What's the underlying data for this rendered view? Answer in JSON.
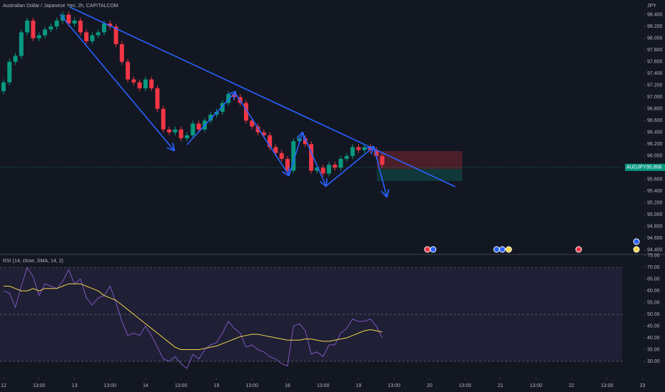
{
  "chart_data": [
    {
      "type": "candlestick",
      "title": "Australian Dollar / Japanese Yen, 2h, CAPITALCOM",
      "currency": "JPY",
      "up_color": "#089981",
      "down_color": "#f23645",
      "open": [
        97.1,
        97.25,
        97.6,
        97.7,
        98.1,
        98.3,
        98.0,
        98.05,
        98.15,
        98.2,
        98.3,
        98.4,
        98.25,
        98.3,
        98.1,
        97.95,
        98.05,
        98.1,
        98.25,
        98.2,
        97.9,
        97.6,
        97.3,
        97.25,
        97.15,
        97.3,
        97.15,
        96.8,
        96.45,
        96.4,
        96.45,
        96.3,
        96.35,
        96.55,
        96.45,
        96.6,
        96.7,
        96.75,
        96.9,
        97.05,
        97.0,
        96.9,
        96.6,
        96.5,
        96.4,
        96.35,
        96.15,
        96.05,
        95.95,
        95.75,
        96.25,
        96.3,
        96.2,
        95.75,
        95.8,
        95.7,
        95.85,
        95.8,
        95.95,
        96.0,
        96.15,
        96.1,
        96.15,
        96.1,
        96.0
      ],
      "high": [
        97.3,
        97.65,
        97.75,
        98.15,
        98.35,
        98.35,
        98.1,
        98.2,
        98.25,
        98.35,
        98.45,
        98.45,
        98.35,
        98.35,
        98.15,
        98.1,
        98.15,
        98.3,
        98.3,
        98.25,
        97.95,
        97.65,
        97.35,
        97.3,
        97.35,
        97.35,
        97.2,
        96.85,
        96.5,
        96.5,
        96.5,
        96.4,
        96.6,
        96.6,
        96.65,
        96.75,
        96.8,
        96.95,
        97.1,
        97.1,
        97.05,
        96.95,
        96.65,
        96.55,
        96.45,
        96.4,
        96.2,
        96.1,
        96.0,
        96.3,
        96.35,
        96.35,
        96.25,
        95.85,
        95.85,
        95.9,
        95.9,
        96.0,
        96.05,
        96.2,
        96.2,
        96.2,
        96.2,
        96.15,
        96.05
      ],
      "low": [
        97.05,
        97.2,
        97.55,
        97.65,
        98.05,
        97.95,
        97.95,
        98.0,
        98.1,
        98.15,
        98.25,
        98.2,
        98.2,
        98.05,
        97.9,
        97.9,
        98.0,
        98.05,
        98.15,
        97.85,
        97.55,
        97.25,
        97.2,
        97.1,
        97.1,
        97.1,
        96.75,
        96.4,
        96.35,
        96.35,
        96.25,
        96.25,
        96.3,
        96.4,
        96.4,
        96.55,
        96.65,
        96.7,
        96.85,
        96.95,
        96.85,
        96.55,
        96.45,
        96.35,
        96.3,
        96.1,
        96.0,
        95.9,
        95.7,
        95.7,
        96.2,
        96.15,
        95.7,
        95.7,
        95.65,
        95.65,
        95.75,
        95.75,
        95.9,
        95.95,
        96.05,
        96.05,
        96.05,
        95.95,
        95.8
      ],
      "close": [
        97.25,
        97.6,
        97.7,
        98.1,
        98.3,
        98.0,
        98.05,
        98.15,
        98.2,
        98.3,
        98.4,
        98.25,
        98.3,
        98.1,
        97.95,
        98.05,
        98.1,
        98.25,
        98.2,
        97.9,
        97.6,
        97.3,
        97.25,
        97.15,
        97.3,
        97.15,
        96.8,
        96.45,
        96.4,
        96.45,
        96.3,
        96.35,
        96.55,
        96.45,
        96.6,
        96.7,
        96.75,
        96.9,
        97.05,
        97.0,
        96.9,
        96.6,
        96.5,
        96.4,
        96.35,
        96.15,
        96.05,
        95.95,
        95.75,
        96.25,
        96.3,
        96.2,
        95.75,
        95.8,
        95.7,
        95.85,
        95.8,
        95.95,
        96.0,
        96.15,
        96.1,
        96.15,
        96.1,
        96.0,
        95.85
      ],
      "last_price": {
        "symbol": "AUDJPY",
        "value": 95.806
      },
      "xlim": [
        -0.6,
        111.8
      ],
      "ylim": [
        94.35,
        98.65
      ],
      "yticks": [
        {
          "value": 94.4,
          "label": "94.400"
        },
        {
          "value": 94.6,
          "label": "94.600"
        },
        {
          "value": 94.8,
          "label": "94.800"
        },
        {
          "value": 95.0,
          "label": "95.000"
        },
        {
          "value": 95.2,
          "label": "95.200"
        },
        {
          "value": 95.4,
          "label": "95.400"
        },
        {
          "value": 95.6,
          "label": "95.600"
        },
        {
          "value": 95.8,
          "label": "95.800"
        },
        {
          "value": 96.0,
          "label": "96.000"
        },
        {
          "value": 96.2,
          "label": "96.200"
        },
        {
          "value": 96.4,
          "label": "96.400"
        },
        {
          "value": 96.6,
          "label": "96.600"
        },
        {
          "value": 96.8,
          "label": "96.800"
        },
        {
          "value": 97.0,
          "label": "97.000"
        },
        {
          "value": 97.2,
          "label": "97.200"
        },
        {
          "value": 97.4,
          "label": "97.400"
        },
        {
          "value": 97.6,
          "label": "97.600"
        },
        {
          "value": 97.8,
          "label": "97.800"
        },
        {
          "value": 98.0,
          "label": "98.000"
        },
        {
          "value": 98.2,
          "label": "98.200"
        },
        {
          "value": 98.4,
          "label": "98.400"
        }
      ]
    },
    {
      "type": "line",
      "title": "RSI (14, close, SMA, 14, 2)",
      "series": [
        {
          "color": "#7e57c2",
          "values": [
            60,
            59,
            53,
            62,
            70,
            66,
            58,
            63,
            62,
            61,
            64,
            69,
            63,
            65,
            57,
            54,
            57,
            58,
            62,
            55,
            47,
            41,
            42,
            41,
            45,
            41,
            36,
            31,
            30,
            32,
            29,
            27,
            33,
            31,
            35,
            37,
            38,
            42,
            47,
            44,
            42,
            36,
            37,
            35,
            34,
            32,
            31,
            29,
            28,
            45,
            46,
            43,
            33,
            34,
            32,
            37,
            37,
            42,
            44,
            48,
            47,
            47,
            48,
            45,
            40
          ]
        },
        {
          "color": "#f2d64b",
          "values": [
            62,
            62,
            61,
            60,
            60,
            61,
            60,
            61,
            61,
            61,
            62,
            63,
            63,
            63,
            62,
            61,
            60,
            58,
            57,
            56,
            54,
            52,
            50,
            48,
            46,
            44,
            42,
            40,
            38,
            36,
            35,
            35,
            35,
            35,
            35.5,
            36,
            36.5,
            37.5,
            38.5,
            39.5,
            40.5,
            41,
            41.5,
            41.5,
            41,
            40.5,
            40,
            39.5,
            39,
            39,
            39,
            39.5,
            39.5,
            39,
            38.5,
            38.5,
            39,
            39.5,
            40,
            41,
            42,
            43,
            43.5,
            43,
            42.5
          ]
        }
      ],
      "bands": [
        70,
        50,
        30
      ],
      "xlim": [
        -0.6,
        111.8
      ],
      "xticks": [
        {
          "value": 0,
          "label": "12"
        },
        {
          "value": 6,
          "label": "13:00"
        },
        {
          "value": 12,
          "label": "13"
        },
        {
          "value": 18,
          "label": "13:00"
        },
        {
          "value": 24,
          "label": "14"
        },
        {
          "value": 30,
          "label": "13:00"
        },
        {
          "value": 36,
          "label": "15"
        },
        {
          "value": 42,
          "label": "13:00"
        },
        {
          "value": 48,
          "label": "16"
        },
        {
          "value": 54,
          "label": "13:00"
        },
        {
          "value": 60,
          "label": "19"
        },
        {
          "value": 66,
          "label": "13:00"
        },
        {
          "value": 72,
          "label": "20"
        },
        {
          "value": 78,
          "label": "13:00"
        },
        {
          "value": 84,
          "label": "21"
        },
        {
          "value": 90,
          "label": "13:00"
        },
        {
          "value": 96,
          "label": "22"
        },
        {
          "value": 102,
          "label": "13:00"
        },
        {
          "value": 108,
          "label": "23"
        }
      ],
      "ylim": [
        23,
        75.5
      ],
      "yticks": [
        {
          "value": 30,
          "label": "30.00"
        },
        {
          "value": 35,
          "label": "35.00"
        },
        {
          "value": 40,
          "label": "40.00"
        },
        {
          "value": 45,
          "label": "45.00"
        },
        {
          "value": 50,
          "label": "50.00"
        },
        {
          "value": 55,
          "label": "55.00"
        },
        {
          "value": 60,
          "label": "60.00"
        },
        {
          "value": 65,
          "label": "65.00"
        },
        {
          "value": 70,
          "label": "70.00"
        },
        {
          "value": 75,
          "label": "75.00"
        }
      ]
    }
  ]
}
